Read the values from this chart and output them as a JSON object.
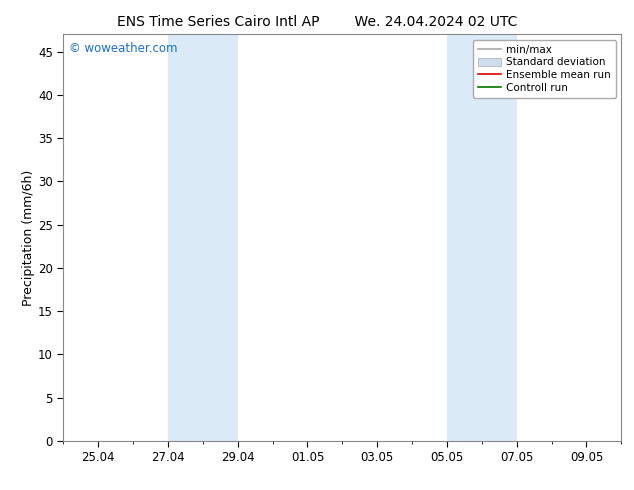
{
  "title_left": "ENS Time Series Cairo Intl AP",
  "title_right": "We. 24.04.2024 02 UTC",
  "ylabel": "Precipitation (mm/6h)",
  "ylim": [
    0,
    47
  ],
  "yticks": [
    0,
    5,
    10,
    15,
    20,
    25,
    30,
    35,
    40,
    45
  ],
  "xlim": [
    0,
    16
  ],
  "xtick_labels": [
    "25.04",
    "27.04",
    "29.04",
    "01.05",
    "03.05",
    "05.05",
    "07.05",
    "09.05"
  ],
  "xtick_positions": [
    1,
    3,
    5,
    7,
    9,
    11,
    13,
    15
  ],
  "minor_xtick_positions": [
    0,
    1,
    2,
    3,
    4,
    5,
    6,
    7,
    8,
    9,
    10,
    11,
    12,
    13,
    14,
    15,
    16
  ],
  "shaded_bands": [
    {
      "x_start": 3,
      "x_end": 5
    },
    {
      "x_start": 11,
      "x_end": 13
    }
  ],
  "shade_color": "#daeaf7",
  "watermark_text": "© woweather.com",
  "watermark_color": "#1a6fce",
  "legend_entries": [
    {
      "label": "min/max",
      "color": "#aaaaaa",
      "lw": 1.2,
      "type": "line"
    },
    {
      "label": "Standard deviation",
      "color": "#ccdded",
      "lw": 5,
      "type": "patch"
    },
    {
      "label": "Ensemble mean run",
      "color": "#dd0000",
      "lw": 1.2,
      "type": "line"
    },
    {
      "label": "Controll run",
      "color": "#007700",
      "lw": 1.2,
      "type": "line"
    }
  ],
  "bg_color": "#ffffff",
  "title_fontsize": 10,
  "tick_fontsize": 8.5,
  "label_fontsize": 9,
  "legend_fontsize": 7.5
}
